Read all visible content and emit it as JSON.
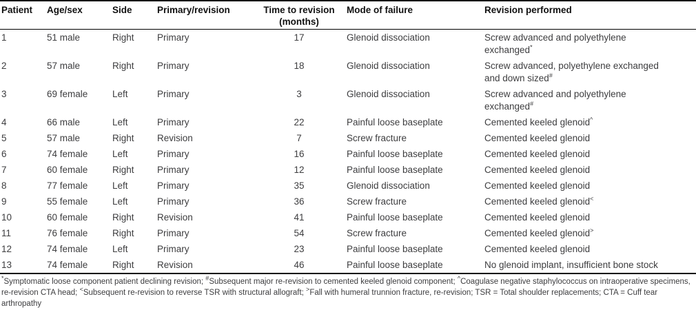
{
  "table": {
    "headers": {
      "patient": "Patient",
      "age_sex": "Age/sex",
      "side": "Side",
      "type": "Primary/revision",
      "months": "Time to revision\n(months)",
      "failure": "Mode of failure",
      "revision": "Revision performed"
    },
    "rows": [
      {
        "patient": "1",
        "age_sex": "51 male",
        "side": "Right",
        "type": "Primary",
        "months": "17",
        "failure": "Glenoid dissociation",
        "revision": "Screw advanced and polyethylene\nexchanged",
        "sup": "*"
      },
      {
        "patient": "2",
        "age_sex": "57 male",
        "side": "Right",
        "type": "Primary",
        "months": "18",
        "failure": "Glenoid dissociation",
        "revision": "Screw advanced, polyethylene exchanged\nand down sized",
        "sup": "#"
      },
      {
        "patient": "3",
        "age_sex": "69 female",
        "side": "Left",
        "type": "Primary",
        "months": "3",
        "failure": "Glenoid dissociation",
        "revision": "Screw advanced and polyethylene\nexchanged",
        "sup": "#"
      },
      {
        "patient": "4",
        "age_sex": "66 male",
        "side": "Left",
        "type": "Primary",
        "months": "22",
        "failure": "Painful loose baseplate",
        "revision": "Cemented keeled glenoid",
        "sup": "^"
      },
      {
        "patient": "5",
        "age_sex": "57 male",
        "side": "Right",
        "type": "Revision",
        "months": "7",
        "failure": "Screw fracture",
        "revision": "Cemented keeled glenoid",
        "sup": ""
      },
      {
        "patient": "6",
        "age_sex": "74 female",
        "side": "Left",
        "type": "Primary",
        "months": "16",
        "failure": "Painful loose baseplate",
        "revision": "Cemented keeled glenoid",
        "sup": ""
      },
      {
        "patient": "7",
        "age_sex": "60 female",
        "side": "Right",
        "type": "Primary",
        "months": "12",
        "failure": "Painful loose baseplate",
        "revision": "Cemented keeled glenoid",
        "sup": ""
      },
      {
        "patient": "8",
        "age_sex": "77 female",
        "side": "Left",
        "type": "Primary",
        "months": "35",
        "failure": "Glenoid dissociation",
        "revision": "Cemented keeled glenoid",
        "sup": ""
      },
      {
        "patient": "9",
        "age_sex": "55 female",
        "side": "Left",
        "type": "Primary",
        "months": "36",
        "failure": "Screw fracture",
        "revision": "Cemented keeled glenoid",
        "sup": "<"
      },
      {
        "patient": "10",
        "age_sex": "60 female",
        "side": "Right",
        "type": "Revision",
        "months": "41",
        "failure": "Painful loose baseplate",
        "revision": "Cemented keeled glenoid",
        "sup": ""
      },
      {
        "patient": "11",
        "age_sex": "76 female",
        "side": "Right",
        "type": "Primary",
        "months": "54",
        "failure": "Screw fracture",
        "revision": "Cemented keeled glenoid",
        "sup": ">"
      },
      {
        "patient": "12",
        "age_sex": "74 female",
        "side": "Left",
        "type": "Primary",
        "months": "23",
        "failure": "Painful loose baseplate",
        "revision": "Cemented keeled glenoid",
        "sup": ""
      },
      {
        "patient": "13",
        "age_sex": "74 female",
        "side": "Right",
        "type": "Revision",
        "months": "46",
        "failure": "Painful loose baseplate",
        "revision": "No glenoid implant, insufficient bone stock",
        "sup": ""
      }
    ]
  },
  "footnotes": {
    "segments": [
      {
        "sup": "*",
        "text": "Symptomatic loose component patient declining revision; "
      },
      {
        "sup": "#",
        "text": "Subsequent major re-revision to cemented keeled glenoid component; "
      },
      {
        "sup": "^",
        "text": "Coagulase negative staphylococcus on intraoperative specimens, re-revision CTA head; "
      },
      {
        "sup": "<",
        "text": "Subsequent re-revision to reverse TSR with structural allograft; "
      },
      {
        "sup": ">",
        "text": "Fall with humeral trunnion fracture, re-revision; TSR = Total shoulder replacements; CTA = Cuff tear arthropathy"
      }
    ]
  },
  "colors": {
    "background": "#ffffff",
    "border": "#000000",
    "header_text": "#111111",
    "body_text": "#3d3d3f"
  }
}
